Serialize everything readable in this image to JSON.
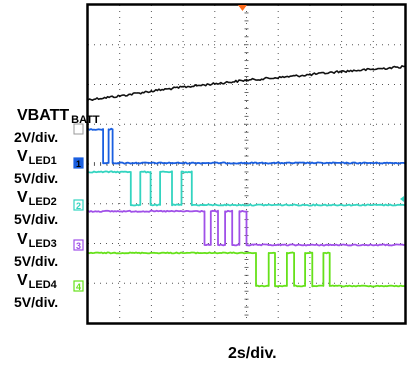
{
  "chart_data": {
    "type": "line",
    "timebase": "2s/div.",
    "x_divisions": 10,
    "y_divisions": 8,
    "x_range_s": [
      0,
      20
    ],
    "colors": {
      "VBATT": "#111111",
      "VLED1": "#1a5fe0",
      "VLED2": "#33d4c0",
      "VLED3": "#a050e8",
      "VLED4": "#66e11a",
      "trigger": "#ff6a1a"
    },
    "series": [
      {
        "name": "VBATT",
        "sub": "",
        "scale": "2V/div.",
        "marker": "",
        "t": [
          0,
          2,
          4,
          6,
          8,
          10,
          12,
          14,
          16,
          18,
          20
        ],
        "v": [
          6.0,
          6.36,
          6.86,
          7.26,
          7.6,
          7.96,
          8.22,
          8.52,
          8.84,
          9.06,
          9.34
        ]
      },
      {
        "name": "V",
        "sub": "LED1",
        "scale": "5V/div.",
        "marker": "1",
        "t": [
          0,
          0.95,
          0.95,
          1.3,
          1.3,
          1.55,
          1.55,
          1.9,
          1.9,
          20
        ],
        "v": [
          5.3,
          5.3,
          0,
          0,
          5.3,
          5.3,
          0,
          0,
          0,
          0
        ]
      },
      {
        "name": "V",
        "sub": "LED2",
        "scale": "5V/div.",
        "marker": "2",
        "t": [
          0,
          2.7,
          2.7,
          3.3,
          3.3,
          3.95,
          3.95,
          4.55,
          4.55,
          5.3,
          5.3,
          5.9,
          5.9,
          6.55,
          6.55,
          7.3,
          7.3,
          20
        ],
        "v": [
          5.2,
          5.2,
          0,
          0,
          5.2,
          5.2,
          0,
          0,
          5.2,
          5.2,
          0,
          0,
          5.2,
          5.2,
          0,
          0,
          0,
          0
        ]
      },
      {
        "name": "V",
        "sub": "LED3",
        "scale": "5V/div.",
        "marker": "3",
        "t": [
          0,
          7.35,
          7.35,
          7.75,
          7.75,
          8.2,
          8.2,
          8.65,
          8.65,
          9.1,
          9.1,
          9.55,
          9.55,
          10.0,
          10.0,
          10.45,
          10.45,
          20
        ],
        "v": [
          5.3,
          5.3,
          0,
          0,
          5.3,
          5.3,
          0,
          0,
          5.3,
          5.3,
          0,
          0,
          5.3,
          5.3,
          0,
          0,
          0,
          0
        ]
      },
      {
        "name": "V",
        "sub": "LED4",
        "scale": "5V/div.",
        "marker": "4",
        "t": [
          0,
          10.6,
          10.6,
          11.4,
          11.4,
          11.8,
          11.8,
          12.55,
          12.55,
          13.0,
          13.0,
          13.7,
          13.7,
          14.15,
          14.15,
          14.85,
          14.85,
          15.25,
          15.25,
          20
        ],
        "v": [
          5.2,
          5.2,
          0,
          0,
          5.2,
          5.2,
          0,
          0,
          5.2,
          5.2,
          0,
          0,
          5.2,
          5.2,
          0,
          0,
          5.2,
          5.2,
          0,
          0
        ]
      }
    ]
  }
}
